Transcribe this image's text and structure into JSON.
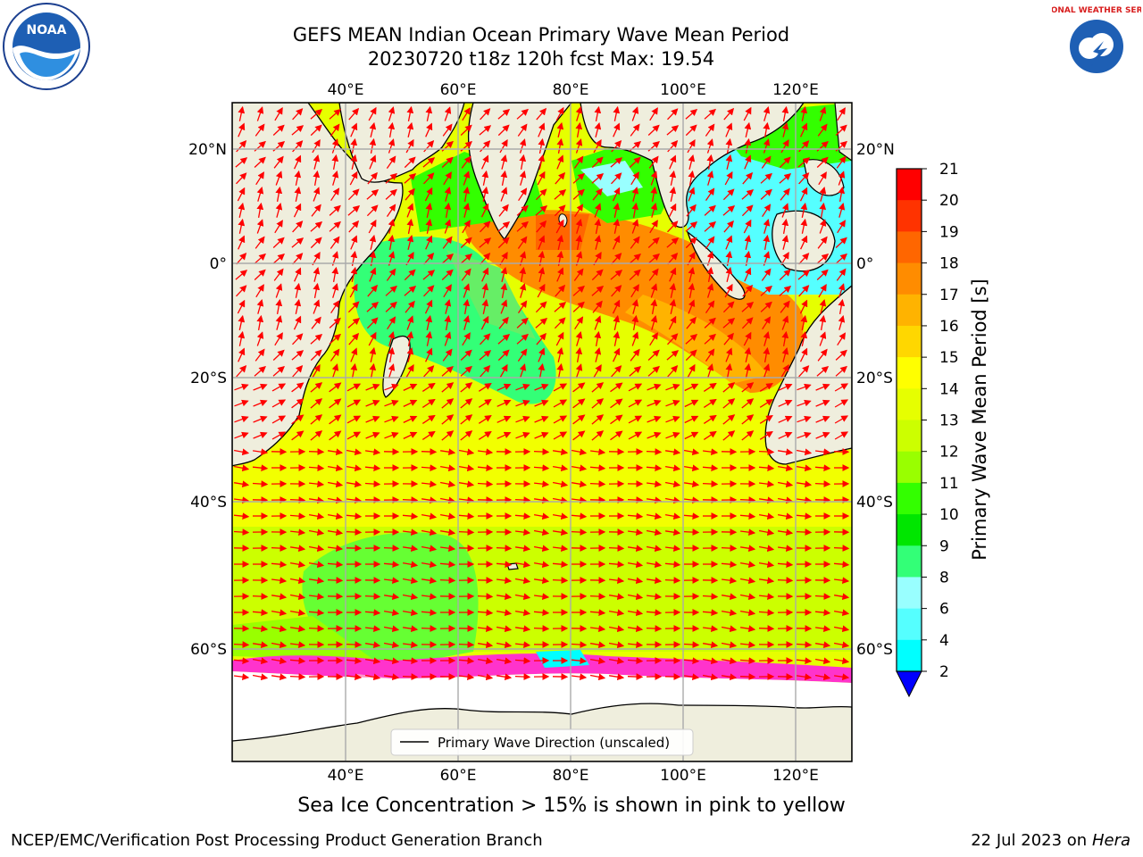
{
  "header": {
    "title_line1": "GEFS MEAN Indian Ocean Primary Wave Mean Period",
    "title_line2": "20230720 t18z 120h fcst   Max: 19.54"
  },
  "logos": {
    "left": "NOAA",
    "right": "NATIONAL WEATHER SERVICE"
  },
  "map": {
    "lon_ticks": [
      "40°E",
      "60°E",
      "80°E",
      "100°E",
      "120°E"
    ],
    "lat_ticks_left": [
      "20°N",
      "0°",
      "20°S",
      "40°S",
      "60°S"
    ],
    "lat_ticks_right": [
      "20°N",
      "0°",
      "20°S",
      "40°S",
      "60°S"
    ],
    "legend_label": "Primary Wave Direction (unscaled)",
    "land_color": "#efeedd",
    "arrow_color": "#ff0000"
  },
  "colorbar": {
    "label": "Primary Wave Mean Period [s]",
    "levels": [
      "21",
      "20",
      "19",
      "18",
      "17",
      "16",
      "15",
      "14",
      "13",
      "12",
      "11",
      "10",
      "9",
      "8",
      "6",
      "4",
      "2"
    ],
    "colors": [
      "#ff0000",
      "#ff3300",
      "#ff6600",
      "#ff8c00",
      "#ffb300",
      "#ffd700",
      "#ffff00",
      "#e6ff00",
      "#ccff00",
      "#99ff00",
      "#33ff00",
      "#00e600",
      "#33ff77",
      "#99ffff",
      "#55ffff",
      "#00ffff",
      "#00aaff",
      "#0055ff"
    ]
  },
  "caption": "Sea Ice Concentration > 15% is shown in pink to yellow",
  "footer": {
    "left": "NCEP/EMC/Verification Post Processing Product Generation Branch",
    "right_date": "22 Jul 2023 on ",
    "right_machine": "Hera"
  }
}
